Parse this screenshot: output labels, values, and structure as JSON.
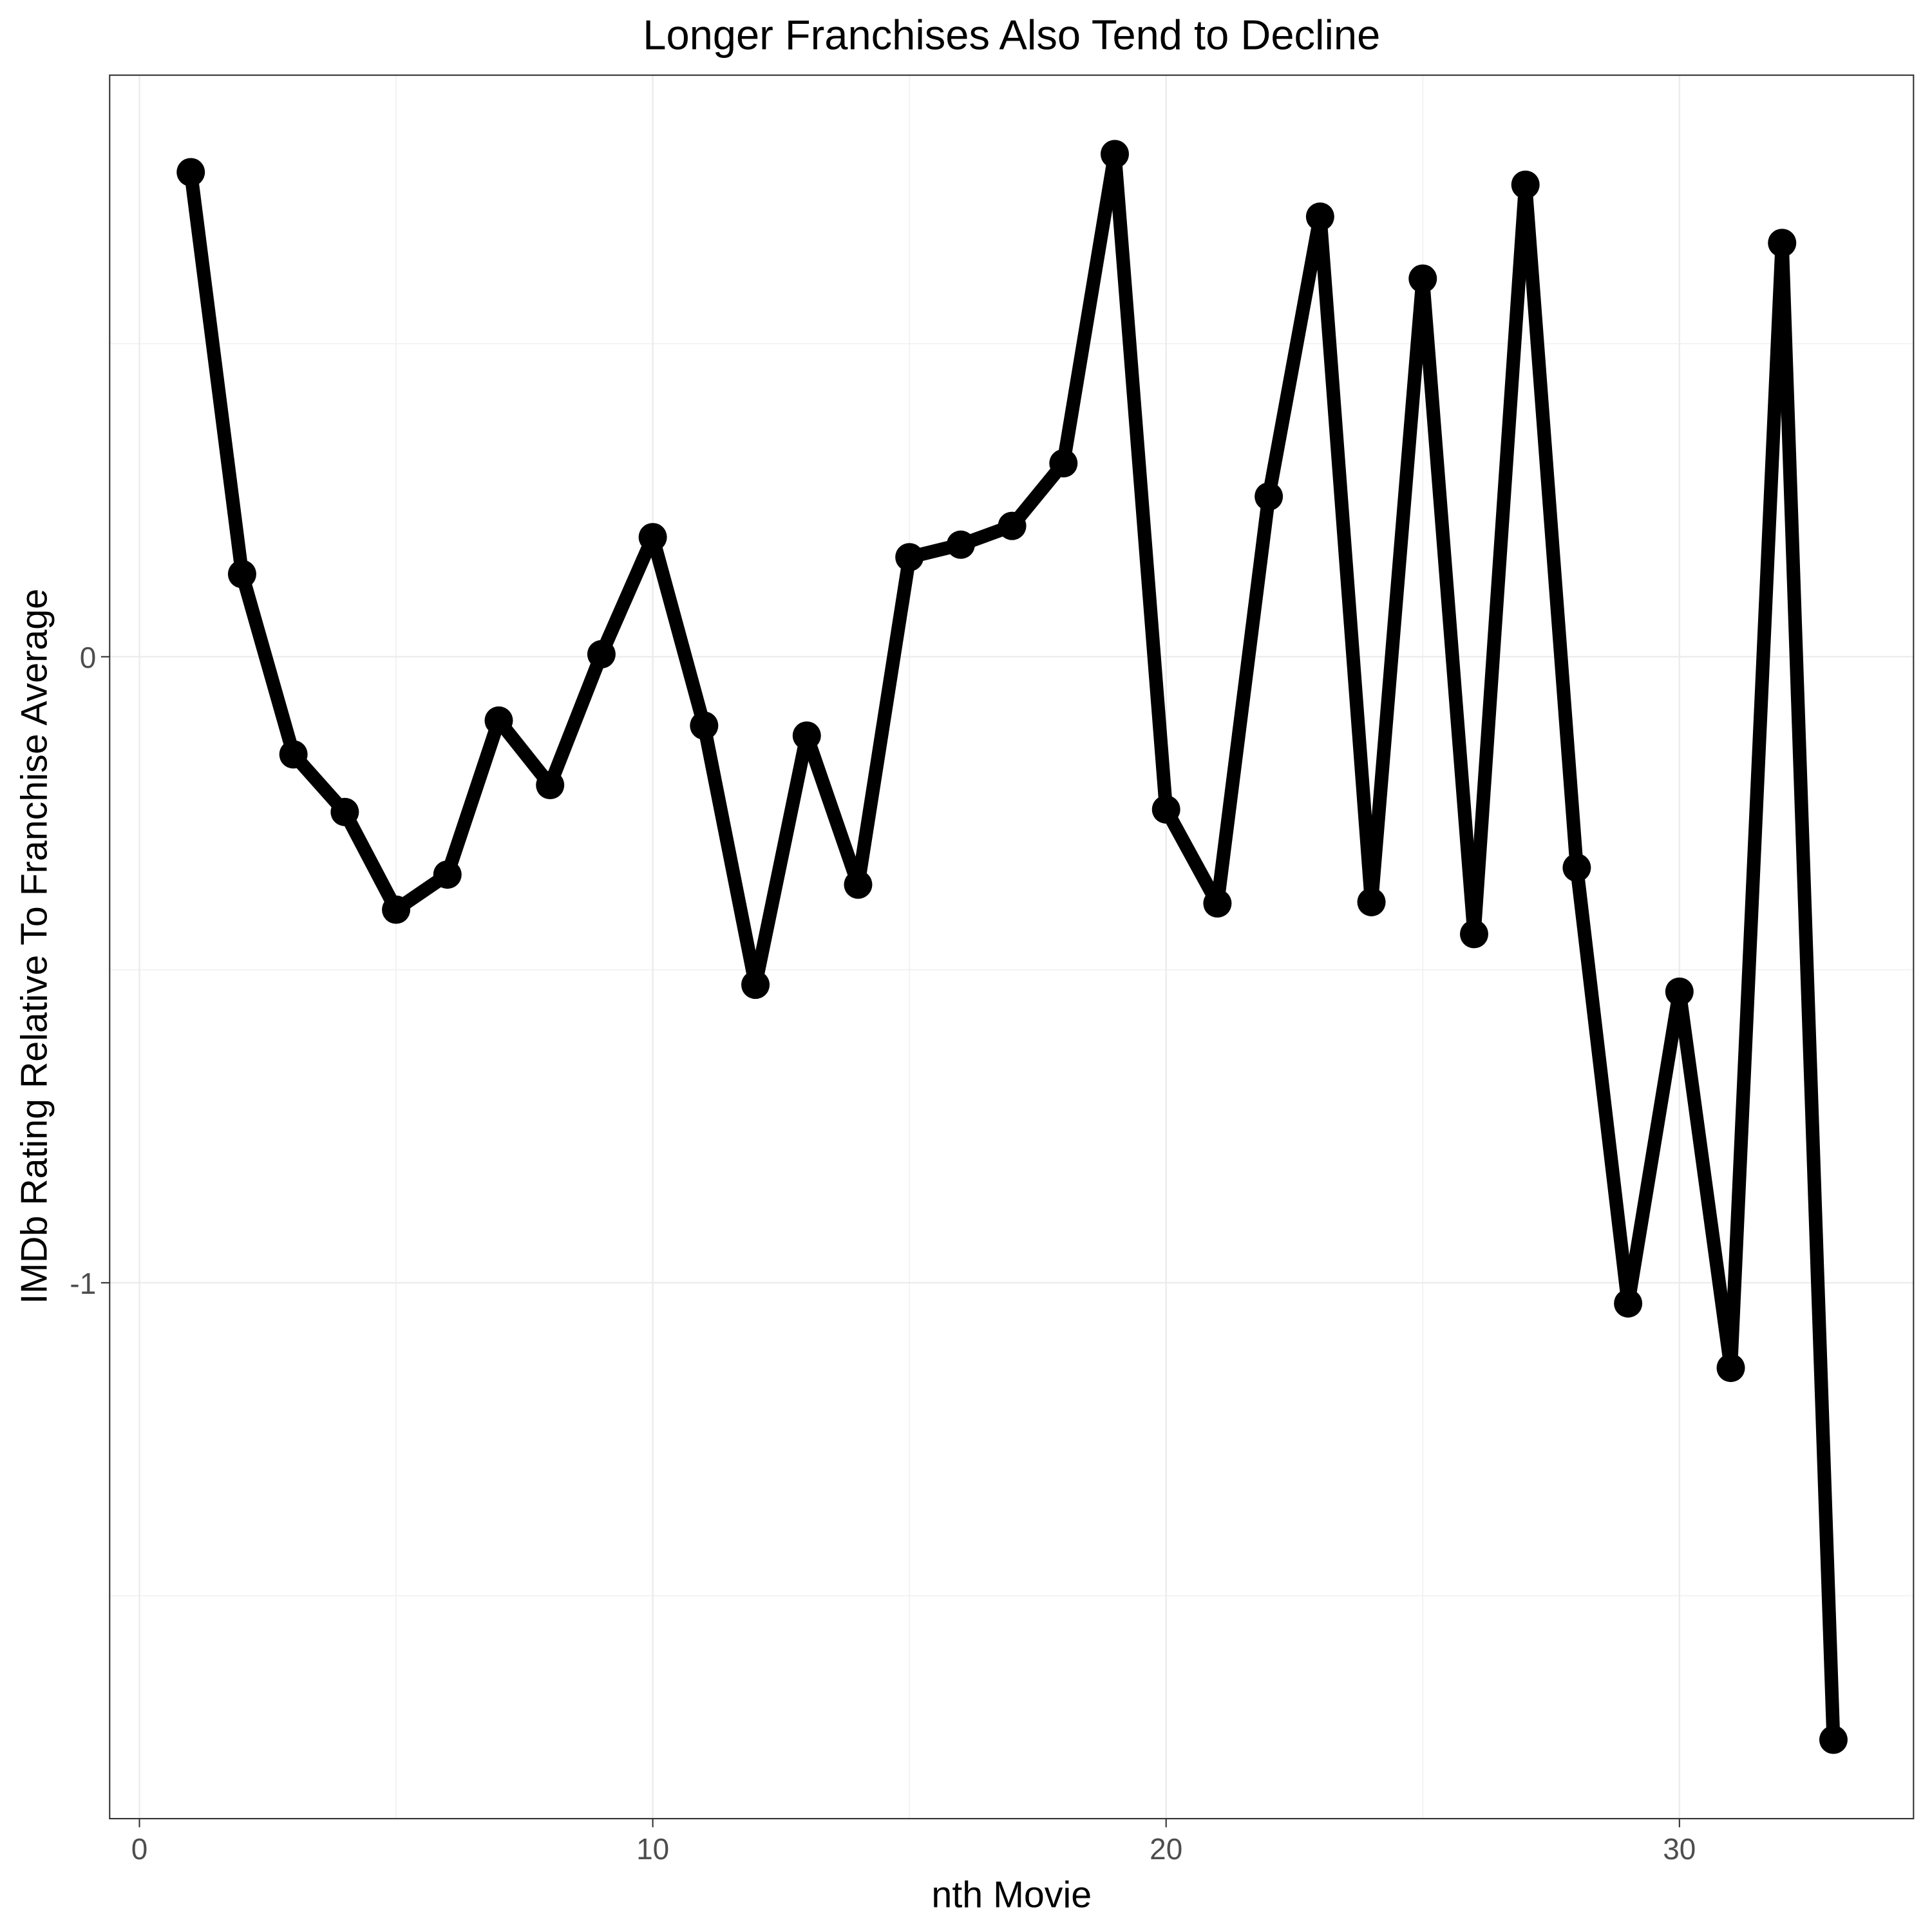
{
  "chart_data": {
    "type": "line",
    "title": "Longer Franchises Also Tend to Decline",
    "xlabel": "nth Movie",
    "ylabel": "IMDb Rating Relative To Franchise Average",
    "xlim": [
      -0.58,
      34.56
    ],
    "ylim": [
      -1.856,
      0.929
    ],
    "xticks": [
      0,
      10,
      20,
      30
    ],
    "xtick_labels": [
      "0",
      "10",
      "20",
      "30"
    ],
    "yticks": [
      0,
      -1
    ],
    "ytick_labels": [
      "0",
      "-1"
    ],
    "grid": true,
    "line_color": "#000000",
    "x": [
      1,
      2,
      3,
      4,
      5,
      6,
      7,
      8,
      9,
      10,
      11,
      12,
      13,
      14,
      15,
      16,
      17,
      18,
      19,
      20,
      21,
      22,
      23,
      24,
      25,
      26,
      27,
      28,
      29,
      30,
      31,
      32,
      33
    ],
    "y": [
      0.774,
      0.132,
      -0.156,
      -0.248,
      -0.404,
      -0.348,
      -0.102,
      -0.205,
      0.004,
      0.191,
      -0.11,
      -0.524,
      -0.126,
      -0.364,
      0.159,
      0.179,
      0.209,
      0.309,
      0.803,
      -0.244,
      -0.394,
      0.256,
      0.703,
      -0.392,
      0.604,
      -0.443,
      0.754,
      -0.337,
      -1.033,
      -0.535,
      -1.136,
      0.661,
      -1.73
    ]
  }
}
